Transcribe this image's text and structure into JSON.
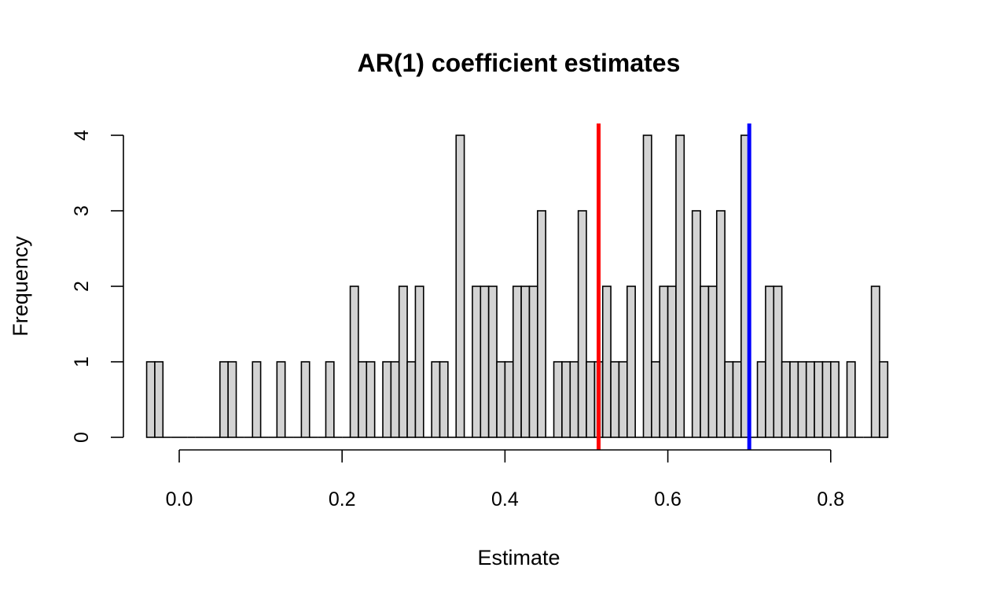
{
  "chart_data": {
    "type": "bar",
    "title": "AR(1) coefficient estimates",
    "xlabel": "Estimate",
    "ylabel": "Frequency",
    "bin_width": 0.01,
    "bins_start": [
      -0.04,
      -0.03,
      -0.02,
      -0.01,
      0.0,
      0.01,
      0.02,
      0.03,
      0.04,
      0.05,
      0.06,
      0.07,
      0.08,
      0.09,
      0.1,
      0.11,
      0.12,
      0.13,
      0.14,
      0.15,
      0.16,
      0.17,
      0.18,
      0.19,
      0.2,
      0.21,
      0.22,
      0.23,
      0.24,
      0.25,
      0.26,
      0.27,
      0.28,
      0.29,
      0.3,
      0.31,
      0.32,
      0.33,
      0.34,
      0.35,
      0.36,
      0.37,
      0.38,
      0.39,
      0.4,
      0.41,
      0.42,
      0.43,
      0.44,
      0.45,
      0.46,
      0.47,
      0.48,
      0.49,
      0.5,
      0.51,
      0.52,
      0.53,
      0.54,
      0.55,
      0.56,
      0.57,
      0.58,
      0.59,
      0.6,
      0.61,
      0.62,
      0.63,
      0.64,
      0.65,
      0.66,
      0.67,
      0.68,
      0.69,
      0.7,
      0.71,
      0.72,
      0.73,
      0.74,
      0.75,
      0.76,
      0.77,
      0.78,
      0.79,
      0.8,
      0.81,
      0.82,
      0.83,
      0.84,
      0.85,
      0.86
    ],
    "values": [
      1,
      1,
      0,
      0,
      0,
      0,
      0,
      0,
      0,
      1,
      1,
      0,
      0,
      1,
      0,
      0,
      1,
      0,
      0,
      1,
      0,
      0,
      1,
      0,
      0,
      2,
      1,
      1,
      0,
      1,
      1,
      2,
      1,
      2,
      0,
      1,
      1,
      0,
      4,
      0,
      2,
      2,
      2,
      1,
      1,
      2,
      2,
      2,
      3,
      0,
      1,
      1,
      1,
      3,
      1,
      1,
      2,
      1,
      1,
      2,
      0,
      4,
      1,
      2,
      2,
      4,
      0,
      3,
      2,
      2,
      3,
      1,
      1,
      4,
      0,
      1,
      2,
      2,
      1,
      1,
      1,
      1,
      1,
      1,
      1,
      0,
      1,
      0,
      0,
      2,
      1
    ],
    "xlim": [
      -0.04,
      0.87
    ],
    "ylim": [
      0,
      4
    ],
    "x_ticks": [
      "0.0",
      "0.2",
      "0.4",
      "0.6",
      "0.8"
    ],
    "x_tick_values": [
      0.0,
      0.2,
      0.4,
      0.6,
      0.8
    ],
    "y_ticks": [
      "0",
      "1",
      "2",
      "3",
      "4"
    ],
    "y_tick_values": [
      0,
      1,
      2,
      3,
      4
    ],
    "vlines": [
      {
        "x": 0.515,
        "color": "#ff0000"
      },
      {
        "x": 0.7,
        "color": "#0000ff"
      }
    ],
    "bar_fill": "#d3d3d3",
    "bar_stroke": "#000000",
    "grid": false,
    "legend": "none"
  }
}
